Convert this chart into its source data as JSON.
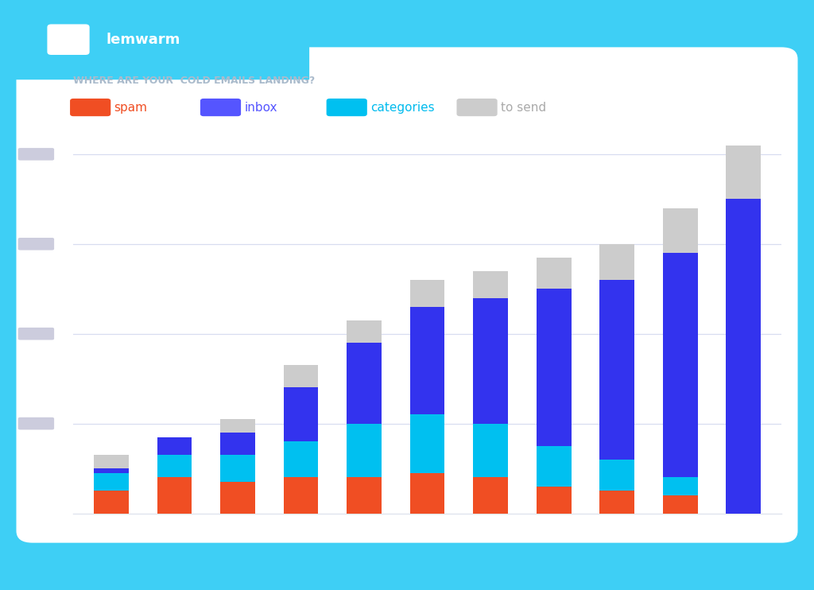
{
  "subtitle": "WHERE ARE YOUR  COLD EMAILS LANDING?",
  "n_bars": 11,
  "spam": [
    5,
    8,
    7,
    8,
    8,
    9,
    8,
    6,
    5,
    4,
    0
  ],
  "cats": [
    4,
    5,
    6,
    8,
    12,
    13,
    12,
    9,
    7,
    4,
    0
  ],
  "inbox": [
    1,
    4,
    5,
    12,
    18,
    24,
    28,
    35,
    40,
    50,
    70
  ],
  "to_send": [
    3,
    0,
    3,
    5,
    5,
    6,
    6,
    7,
    8,
    10,
    12
  ],
  "spam_color": "#F04E23",
  "cats_color": "#00C0F0",
  "inbox_color": "#3333EE",
  "to_send_color": "#CCCCCC",
  "outer_bg": "#3ECFF5",
  "inner_bg": "#FFFFFF",
  "card_bg": "#FFFFFF",
  "header_bg": "#FFFFFF",
  "nav_bg": "#3ECFF5",
  "grid_color": "#E0E4EE",
  "title_color": "#AABBCC",
  "axis_label_color": "#C0C8D8",
  "legend_colors": [
    "#F04E23",
    "#5555FF",
    "#00C0F0",
    "#CCCCCC"
  ],
  "legend_labels": [
    "spam",
    "inbox",
    "categories",
    "to send"
  ],
  "legend_text_colors": [
    "#F04E23",
    "#5555FF",
    "#00BBEE",
    "#AAAAAA"
  ]
}
